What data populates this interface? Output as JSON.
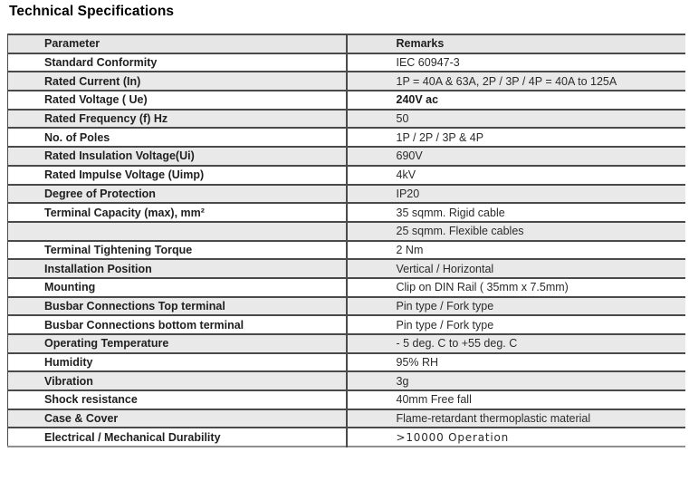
{
  "page_title": "Technical Specifications",
  "colors": {
    "header_bg": "#e6e6e6",
    "stripe_bg": "#e9e9e9",
    "border": "#4a4a4a",
    "text": "#1f1f1f"
  },
  "table": {
    "headers": {
      "parameter": "Parameter",
      "remarks": "Remarks"
    },
    "rows": [
      {
        "parameter": "Standard Conformity",
        "remark": "IEC 60947-3"
      },
      {
        "parameter": "Rated Current (In)",
        "remark": "1P = 40A & 63A,  2P / 3P / 4P = 40A  to 125A"
      },
      {
        "parameter": "Rated Voltage ( Ue)",
        "remark": "240V ac",
        "remark_style": "strong"
      },
      {
        "parameter": "Rated Frequency (f) Hz",
        "remark": "50"
      },
      {
        "parameter": "No. of Poles",
        "remark": "1P / 2P / 3P & 4P"
      },
      {
        "parameter": "Rated Insulation Voltage(Ui)",
        "remark": "690V"
      },
      {
        "parameter": "Rated Impulse Voltage (Uimp)",
        "remark": "4kV"
      },
      {
        "parameter": "Degree of Protection",
        "remark": "IP20"
      },
      {
        "parameter": "Terminal Capacity (max), mm²",
        "remark": "35 sqmm. Rigid cable"
      },
      {
        "parameter": "",
        "remark": "25 sqmm. Flexible cables"
      },
      {
        "parameter": "Terminal Tightening Torque",
        "remark": "2 Nm"
      },
      {
        "parameter": "Installation Position",
        "remark": "Vertical / Horizontal"
      },
      {
        "parameter": "Mounting",
        "remark": "Clip on DIN Rail ( 35mm x 7.5mm)"
      },
      {
        "parameter": "Busbar Connections Top terminal",
        "remark": "Pin type / Fork type"
      },
      {
        "parameter": "Busbar Connections bottom terminal",
        "remark": "Pin type / Fork type"
      },
      {
        "parameter": "Operating Temperature",
        "remark": "- 5 deg. C to +55 deg. C"
      },
      {
        "parameter": "Humidity",
        "remark": "95% RH"
      },
      {
        "parameter": "Vibration",
        "remark": "3g"
      },
      {
        "parameter": "Shock resistance",
        "remark": "40mm Free fall"
      },
      {
        "parameter": "Case & Cover",
        "remark": "Flame-retardant thermoplastic material"
      },
      {
        "parameter": "Electrical / Mechanical Durability",
        "remark": ">10000 Operation",
        "remark_style": "alt"
      }
    ]
  }
}
